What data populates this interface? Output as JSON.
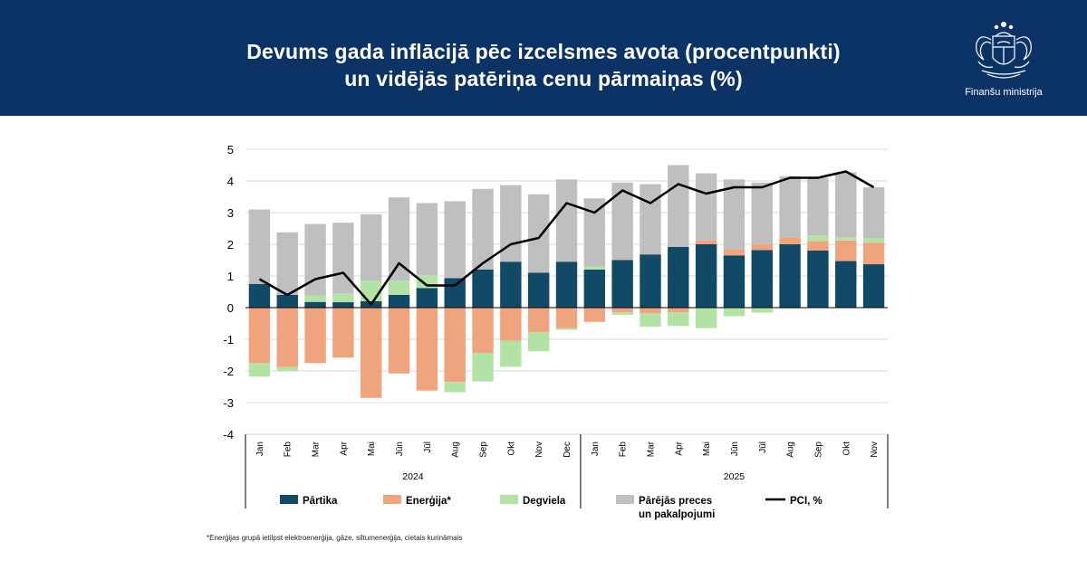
{
  "header": {
    "title_line1": "Devums gada inflācijā pēc izcelsmes avota (procentpunkti)",
    "title_line2": "un vidējās patēriņa cenu pārmaiņas (%)",
    "logo_text": "Finanšu ministrija"
  },
  "colors": {
    "header_bg": "#0c3366",
    "partika": "#114a66",
    "energija": "#f0a47e",
    "degviela": "#b2e3a5",
    "parejas": "#bfbfbf",
    "pci": "#000000"
  },
  "chart_data": {
    "type": "bar",
    "stacked": true,
    "categories": [
      "Jan",
      "Feb",
      "Mar",
      "Apr",
      "Mai",
      "Jūn",
      "Jūl",
      "Aug",
      "Sep",
      "Okt",
      "Nov",
      "Dec",
      "Jan",
      "Feb",
      "Mar",
      "Apr",
      "Mai",
      "Jūn",
      "Jūl",
      "Aug",
      "Sep",
      "Okt",
      "Nov"
    ],
    "year_groups": [
      {
        "label": "2024",
        "count": 12
      },
      {
        "label": "2025",
        "count": 11
      }
    ],
    "ylim": [
      -4,
      5
    ],
    "yticks": [
      "5",
      "4",
      "3",
      "2",
      "1",
      "0",
      "-1",
      "-2",
      "-3",
      "-4"
    ],
    "series": [
      {
        "name": "Pārtika",
        "key": "partika",
        "values": [
          0.75,
          0.4,
          0.18,
          0.17,
          0.2,
          0.4,
          0.62,
          0.93,
          1.2,
          1.45,
          1.1,
          1.45,
          1.2,
          1.5,
          1.68,
          1.92,
          2.0,
          1.65,
          1.82,
          2.0,
          1.8,
          1.47,
          1.37
        ]
      },
      {
        "name": "Enerģija*",
        "key": "energija",
        "values": [
          -1.75,
          -1.88,
          -1.75,
          -1.58,
          -2.85,
          -2.08,
          -2.62,
          -2.35,
          -1.43,
          -1.05,
          -0.78,
          -0.65,
          -0.45,
          -0.15,
          -0.18,
          -0.15,
          0.12,
          0.18,
          0.2,
          0.22,
          0.3,
          0.65,
          0.68
        ]
      },
      {
        "name": "Degviela",
        "key": "degviela",
        "values": [
          -0.43,
          -0.13,
          0.2,
          0.28,
          0.65,
          0.45,
          0.4,
          -0.32,
          -0.9,
          -0.82,
          -0.6,
          -0.05,
          0.1,
          -0.08,
          -0.42,
          -0.43,
          -0.65,
          -0.27,
          -0.16,
          -0.03,
          0.18,
          0.1,
          0.15
        ]
      },
      {
        "name": "Pārējās preces un pakalpojumi",
        "key": "parejas",
        "values": [
          2.35,
          1.98,
          2.26,
          2.23,
          2.1,
          2.63,
          2.28,
          2.43,
          2.55,
          2.42,
          2.48,
          2.6,
          2.15,
          2.45,
          2.22,
          2.58,
          2.12,
          2.22,
          1.93,
          1.93,
          1.82,
          2.05,
          1.6
        ]
      },
      {
        "name": "PCI, %",
        "key": "pci",
        "type": "line",
        "values": [
          0.9,
          0.4,
          0.9,
          1.1,
          0.1,
          1.4,
          0.7,
          0.7,
          1.4,
          2.0,
          2.2,
          3.3,
          3.0,
          3.7,
          3.3,
          3.9,
          3.6,
          3.8,
          3.8,
          4.1,
          4.1,
          4.3,
          3.8
        ]
      }
    ],
    "legend": [
      {
        "key": "partika",
        "label1": "Pārtika",
        "label2": ""
      },
      {
        "key": "energija",
        "label1": "Enerģija*",
        "label2": ""
      },
      {
        "key": "degviela",
        "label1": "Degviela",
        "label2": ""
      },
      {
        "key": "parejas",
        "label1": "Pārējās preces",
        "label2": "un pakalpojumi"
      },
      {
        "key": "pci",
        "label1": "PCI, %",
        "label2": ""
      }
    ],
    "legend_position": "bottom"
  },
  "footnote": "*Enerģijas grupā ietilpst elektroenerģija, gāze, siltumenerģija, cietais kurināmais"
}
